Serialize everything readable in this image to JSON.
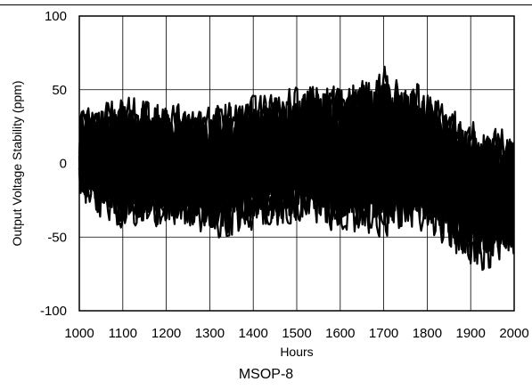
{
  "chart_data": {
    "type": "line",
    "xlabel": "Hours",
    "ylabel": "Output Voltage Stability (ppm)",
    "caption": "MSOP-8",
    "xlim": [
      1000,
      2000
    ],
    "ylim": [
      -100,
      100
    ],
    "x_ticks": [
      1000,
      1100,
      1200,
      1300,
      1400,
      1500,
      1600,
      1700,
      1800,
      1900,
      2000
    ],
    "y_ticks": [
      -100,
      -50,
      0,
      50,
      100
    ],
    "grid": true,
    "line_color": "#000000",
    "series_count": 30,
    "envelope": {
      "x": [
        1000,
        1100,
        1200,
        1300,
        1400,
        1500,
        1600,
        1700,
        1800,
        1900,
        2000
      ],
      "upper": [
        38,
        45,
        42,
        40,
        46,
        55,
        54,
        66,
        52,
        30,
        25
      ],
      "lower": [
        -28,
        -45,
        -42,
        -52,
        -45,
        -40,
        -48,
        -50,
        -45,
        -75,
        -65
      ]
    }
  }
}
